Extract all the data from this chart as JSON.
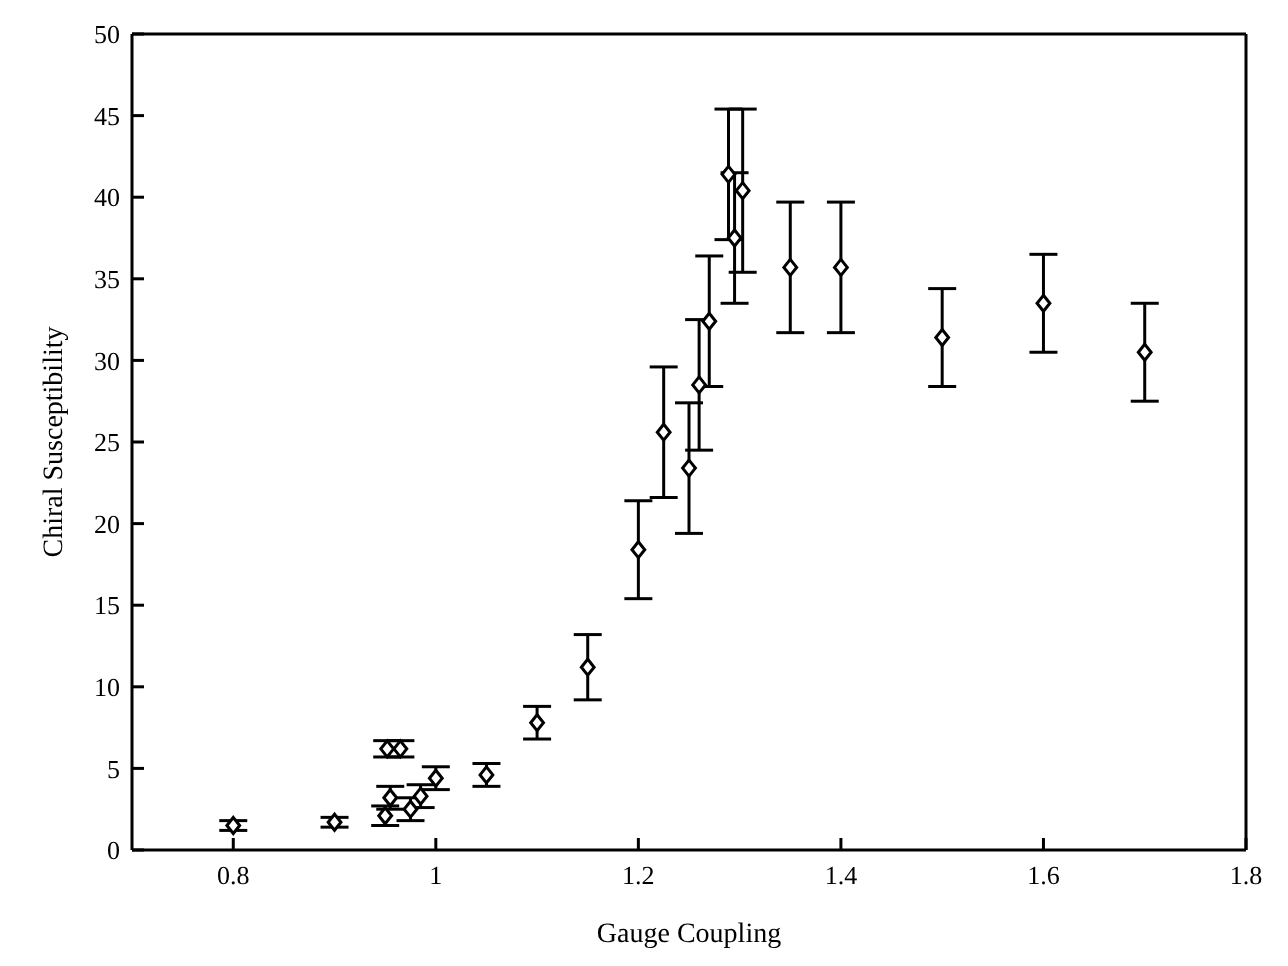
{
  "chart_data": {
    "type": "scatter",
    "xlabel": "Gauge Coupling",
    "ylabel": "Chiral Susceptibility",
    "xlim": [
      0.7,
      1.8
    ],
    "ylim": [
      0,
      50
    ],
    "xticks": [
      0.8,
      1,
      1.2,
      1.4,
      1.6,
      1.8
    ],
    "yticks": [
      0,
      5,
      10,
      15,
      20,
      25,
      30,
      35,
      40,
      45,
      50
    ],
    "marker": "diamond",
    "series": [
      {
        "color": "#000000",
        "x": [
          0.8,
          0.9,
          0.95,
          0.955,
          0.952,
          0.965,
          0.975,
          0.985,
          1.0,
          1.05,
          1.1,
          1.15,
          1.2,
          1.225,
          1.25,
          1.26,
          1.27,
          1.289,
          1.295,
          1.303,
          1.35,
          1.4,
          1.5,
          1.6,
          1.7
        ],
        "values": [
          1.5,
          1.7,
          2.1,
          3.2,
          6.2,
          6.2,
          2.5,
          3.3,
          4.4,
          4.6,
          7.8,
          11.2,
          18.4,
          25.6,
          23.4,
          28.5,
          32.4,
          41.4,
          37.5,
          40.4,
          35.7,
          35.7,
          31.4,
          33.5,
          30.5
        ],
        "errors": [
          0.3,
          0.3,
          0.6,
          0.7,
          0.5,
          0.5,
          0.7,
          0.7,
          0.7,
          0.7,
          1,
          2,
          3,
          4,
          4,
          4,
          4,
          4,
          4,
          5,
          4,
          4,
          3,
          3,
          3
        ]
      }
    ]
  }
}
